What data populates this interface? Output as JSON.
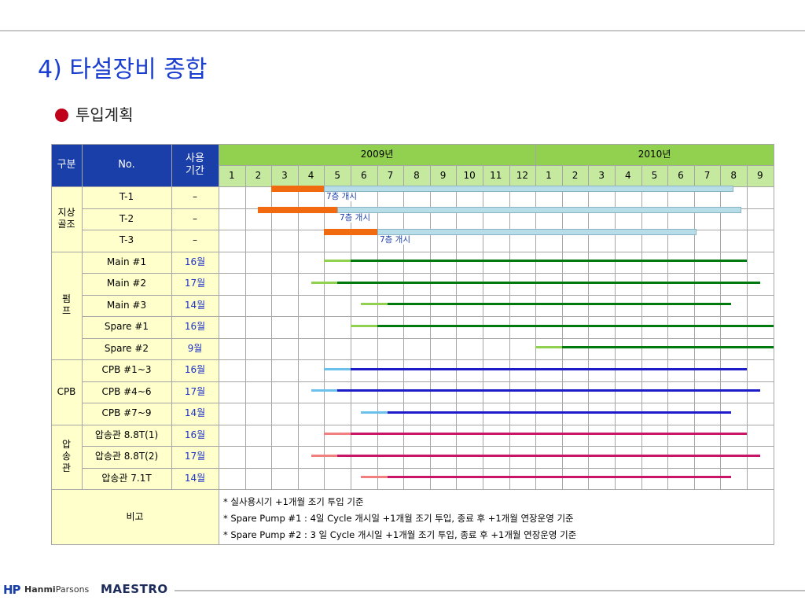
{
  "page": {
    "title": "4) 타설장비 종합",
    "subtitle": "투입계획"
  },
  "table": {
    "headers": {
      "category": "구분",
      "no": "No.",
      "usage": [
        "사용",
        "기간"
      ],
      "year1": "2009년",
      "year2": "2010년"
    },
    "months": [
      "1",
      "2",
      "3",
      "4",
      "5",
      "6",
      "7",
      "8",
      "9",
      "10",
      "11",
      "12",
      "1",
      "2",
      "3",
      "4",
      "5",
      "6",
      "7",
      "8",
      "9"
    ],
    "groups": [
      {
        "label": [
          "지상",
          "골조"
        ],
        "rows": [
          0,
          1,
          2
        ]
      },
      {
        "label": [
          "펌",
          "프"
        ],
        "rows": [
          3,
          4,
          5,
          6,
          7
        ]
      },
      {
        "label": [
          "CPB"
        ],
        "rows": [
          8,
          9,
          10
        ]
      },
      {
        "label": [
          "압",
          "송",
          "관"
        ],
        "rows": [
          11,
          12,
          13
        ]
      }
    ],
    "rows": [
      {
        "no": "T-1",
        "usage": "–",
        "usage_blue": false,
        "pre": [
          2,
          4
        ],
        "main": [
          4,
          19.5
        ],
        "style": "crane",
        "label": "7층 개시"
      },
      {
        "no": "T-2",
        "usage": "–",
        "usage_blue": false,
        "pre": [
          1.5,
          4.5
        ],
        "main": [
          4.5,
          19.8
        ],
        "style": "crane",
        "label": "7층 개시"
      },
      {
        "no": "T-3",
        "usage": "–",
        "usage_blue": false,
        "pre": [
          4,
          6
        ],
        "main": [
          6,
          18.1
        ],
        "style": "crane",
        "label": "7층 개시"
      },
      {
        "no": "Main #1",
        "usage": "16월",
        "usage_blue": true,
        "pre": [
          4,
          5
        ],
        "main": [
          5,
          20
        ],
        "style": "pump"
      },
      {
        "no": "Main #2",
        "usage": "17월",
        "usage_blue": true,
        "pre": [
          3.5,
          4.5
        ],
        "main": [
          4.5,
          20.5
        ],
        "style": "pump"
      },
      {
        "no": "Main #3",
        "usage": "14월",
        "usage_blue": true,
        "pre": [
          5.4,
          6.4
        ],
        "main": [
          6.4,
          19.4
        ],
        "style": "pump"
      },
      {
        "no": "Spare #1",
        "usage": "16월",
        "usage_blue": true,
        "pre": [
          5,
          6
        ],
        "main": [
          6,
          21
        ],
        "style": "pump"
      },
      {
        "no": "Spare #2",
        "usage": "9월",
        "usage_blue": true,
        "pre": [
          12,
          13
        ],
        "main": [
          13,
          21
        ],
        "style": "pump"
      },
      {
        "no": "CPB #1~3",
        "usage": "16월",
        "usage_blue": true,
        "pre": [
          4,
          5
        ],
        "main": [
          5,
          20
        ],
        "style": "cpb"
      },
      {
        "no": "CPB #4~6",
        "usage": "17월",
        "usage_blue": true,
        "pre": [
          3.5,
          4.5
        ],
        "main": [
          4.5,
          20.5
        ],
        "style": "cpb"
      },
      {
        "no": "CPB #7~9",
        "usage": "14월",
        "usage_blue": true,
        "pre": [
          5.4,
          6.4
        ],
        "main": [
          6.4,
          19.4
        ],
        "style": "cpb"
      },
      {
        "no": "압송관 8.8T(1)",
        "usage": "16월",
        "usage_blue": true,
        "pre": [
          4,
          5
        ],
        "main": [
          5,
          20
        ],
        "style": "pipe"
      },
      {
        "no": "압송관 8.8T(2)",
        "usage": "17월",
        "usage_blue": true,
        "pre": [
          3.5,
          4.5
        ],
        "main": [
          4.5,
          20.5
        ],
        "style": "pipe"
      },
      {
        "no": "압송관 7.1T",
        "usage": "14월",
        "usage_blue": true,
        "pre": [
          5.4,
          6.4
        ],
        "main": [
          6.4,
          19.4
        ],
        "style": "pipe"
      }
    ],
    "remarks_label": "비고",
    "remarks": [
      "* 실사용시기 +1개월 조기 투입 기준",
      "* Spare Pump #1 : 4일 Cycle 개시일 +1개월 조기 투입, 종료 후 +1개월 연장운영 기준",
      "* Spare Pump #2 : 3 일 Cycle 개시일 +1개월 조기 투입, 종료 후 +1개월 연장운영 기준"
    ]
  },
  "colors": {
    "crane_pre": "#f26a10",
    "crane_main": "#b7dde8",
    "pump_pre": "#92d050",
    "pump_main": "#007a0e",
    "cpb_pre": "#6cc0ec",
    "cpb_main": "#1c1cc8",
    "pipe_pre": "#f08080",
    "pipe_main": "#c8156a"
  },
  "footer": {
    "logo1_mark": "HP",
    "logo1_bold": "Hanmi",
    "logo1_rest": "Parsons",
    "logo2": "MAESTRO"
  }
}
